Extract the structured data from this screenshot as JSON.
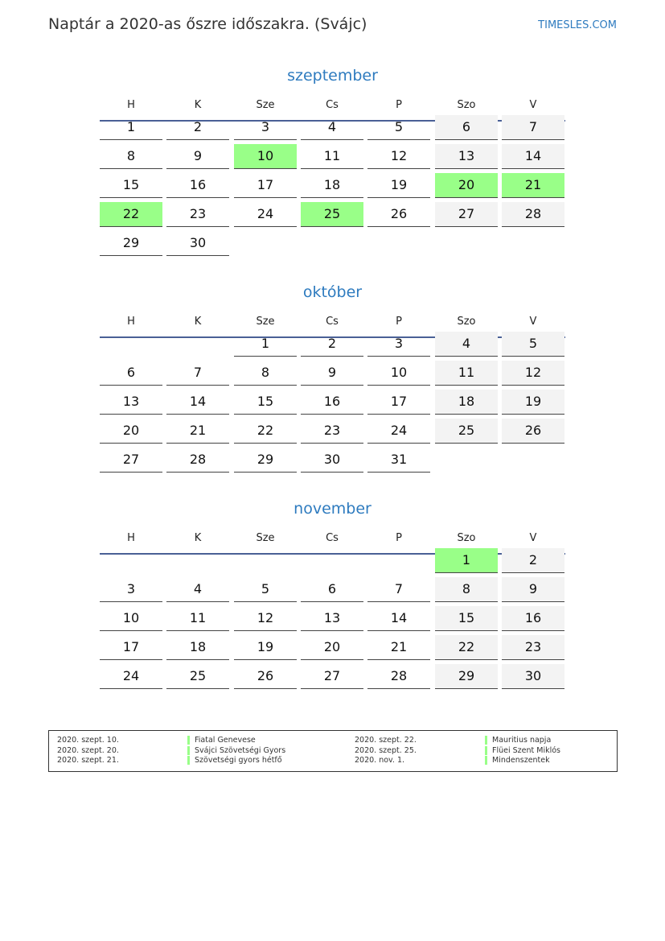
{
  "header": {
    "title": "Naptár a 2020-as őszre időszakra. (Svájc)",
    "brand": "TIMESLES.COM"
  },
  "weekdays": [
    "H",
    "K",
    "Sze",
    "Cs",
    "P",
    "Szo",
    "V"
  ],
  "colors": {
    "holiday": "#99ff88",
    "weekend": "#f3f3f3",
    "accent": "#2e7bbf"
  },
  "months": [
    {
      "name": "szeptember",
      "first_weekday": 1,
      "days": 30,
      "holidays": [
        10,
        20,
        21,
        22,
        25
      ]
    },
    {
      "name": "október",
      "first_weekday": 3,
      "days": 31,
      "holidays": []
    },
    {
      "name": "november",
      "first_weekday": 6,
      "days": 30,
      "holidays": [
        1
      ]
    }
  ],
  "legend": [
    {
      "date": "2020. szept. 10.",
      "name": "Fiatal Genevese"
    },
    {
      "date": "2020. szept. 20.",
      "name": "Svájci Szövetségi Gyors"
    },
    {
      "date": "2020. szept. 21.",
      "name": "Szövetségi gyors hétfő"
    },
    {
      "date": "2020. szept. 22.",
      "name": "Mauritius napja"
    },
    {
      "date": "2020. szept. 25.",
      "name": "Flüei Szent Miklós"
    },
    {
      "date": "2020. nov. 1.",
      "name": "Mindenszentek"
    }
  ]
}
